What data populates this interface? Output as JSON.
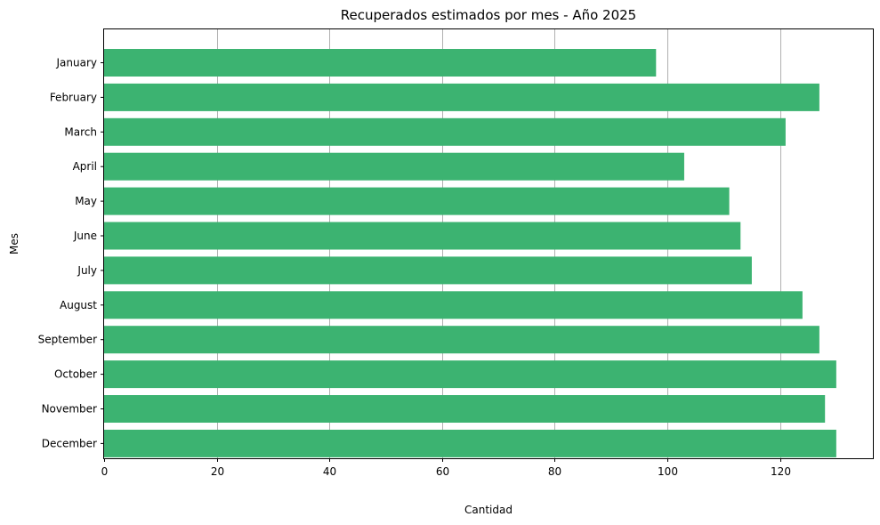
{
  "chart_data": {
    "type": "bar",
    "orientation": "horizontal",
    "title": "Recuperados estimados por mes - Año 2025",
    "xlabel": "Cantidad",
    "ylabel": "Mes",
    "categories": [
      "January",
      "February",
      "March",
      "April",
      "May",
      "June",
      "July",
      "August",
      "September",
      "October",
      "November",
      "December"
    ],
    "values": [
      98,
      127,
      121,
      103,
      111,
      113,
      115,
      124,
      127,
      130,
      128,
      130
    ],
    "xlim": [
      0,
      136.5
    ],
    "xticks": [
      0,
      20,
      40,
      60,
      80,
      100,
      120
    ],
    "grid": "vertical",
    "bar_color": "#3cb371"
  }
}
